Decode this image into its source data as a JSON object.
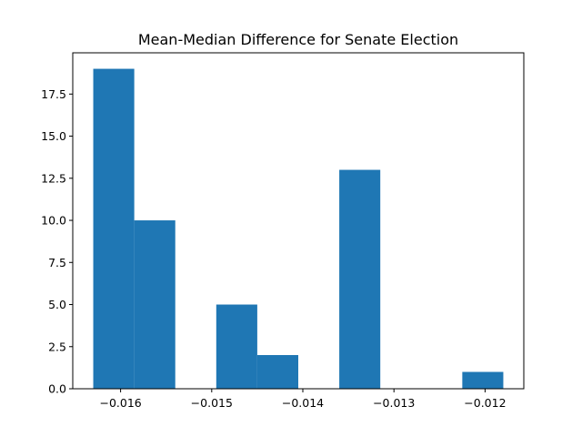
{
  "chart_data": {
    "type": "bar",
    "title": "Mean-Median Difference for Senate Election",
    "xlabel": "",
    "ylabel": "",
    "bins": [
      {
        "start": -0.0163,
        "end": -0.01585,
        "count": 19
      },
      {
        "start": -0.01585,
        "end": -0.0154,
        "count": 10
      },
      {
        "start": -0.0154,
        "end": -0.01495,
        "count": 0
      },
      {
        "start": -0.01495,
        "end": -0.0145,
        "count": 5
      },
      {
        "start": -0.0145,
        "end": -0.01405,
        "count": 2
      },
      {
        "start": -0.01405,
        "end": -0.0136,
        "count": 0
      },
      {
        "start": -0.0136,
        "end": -0.01315,
        "count": 13
      },
      {
        "start": -0.01315,
        "end": -0.0127,
        "count": 0
      },
      {
        "start": -0.0127,
        "end": -0.01225,
        "count": 0
      },
      {
        "start": -0.01225,
        "end": -0.0118,
        "count": 1
      }
    ],
    "xlim": [
      -0.016525,
      -0.011575
    ],
    "ylim": [
      0,
      19.95
    ],
    "x_ticks": [
      {
        "value": -0.016,
        "label": "−0.016"
      },
      {
        "value": -0.015,
        "label": "−0.015"
      },
      {
        "value": -0.014,
        "label": "−0.014"
      },
      {
        "value": -0.013,
        "label": "−0.013"
      },
      {
        "value": -0.012,
        "label": "−0.012"
      }
    ],
    "y_ticks": [
      {
        "value": 0,
        "label": "0.0"
      },
      {
        "value": 2.5,
        "label": "2.5"
      },
      {
        "value": 5,
        "label": "5.0"
      },
      {
        "value": 7.5,
        "label": "7.5"
      },
      {
        "value": 10,
        "label": "10.0"
      },
      {
        "value": 12.5,
        "label": "12.5"
      },
      {
        "value": 15,
        "label": "15.0"
      },
      {
        "value": 17.5,
        "label": "17.5"
      }
    ],
    "bar_color": "#1f77b4",
    "grid": false,
    "legend": "none"
  }
}
